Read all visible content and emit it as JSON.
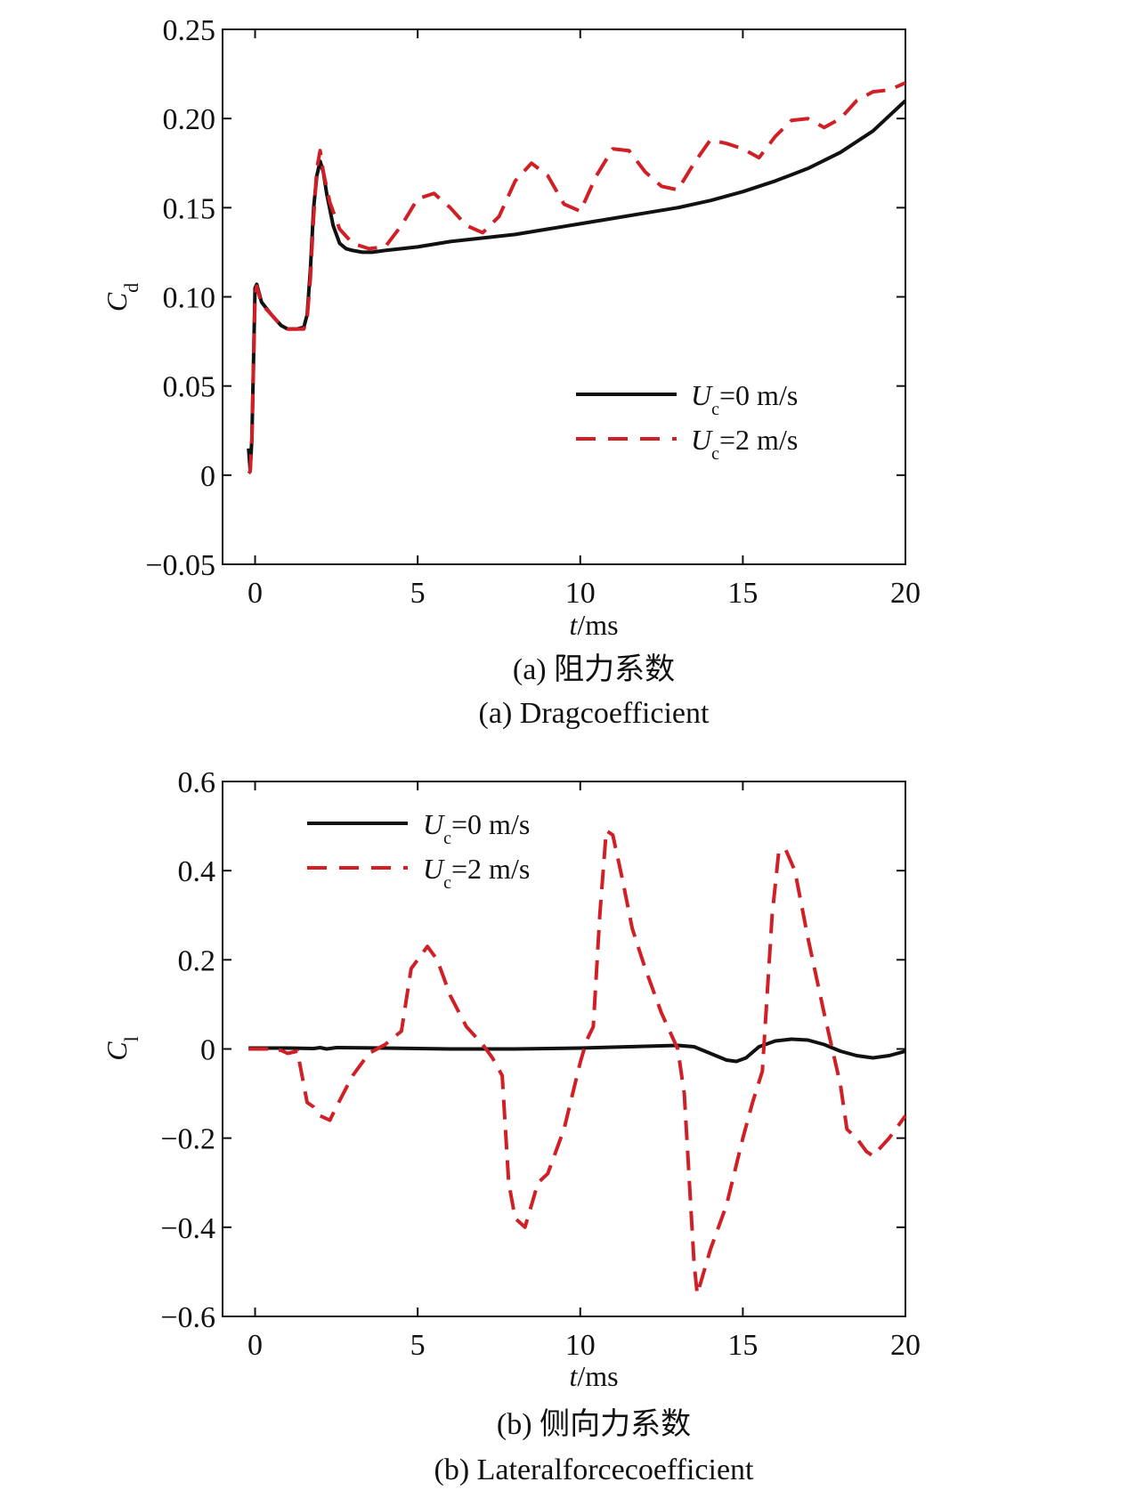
{
  "colors": {
    "black_line": "#111111",
    "red_line": "#d11f26"
  },
  "chart_data": [
    {
      "type": "line",
      "ylabel": "C",
      "ylabel_sub": "d",
      "xlabel_italic": "t",
      "xlabel_unit": "/ms",
      "xlim": [
        -1,
        20
      ],
      "ylim": [
        -0.05,
        0.25
      ],
      "x_ticks": [
        0,
        5,
        10,
        15,
        20
      ],
      "x_tick_labels": [
        "0",
        "5",
        "10",
        "15",
        "20"
      ],
      "y_ticks": [
        -0.05,
        0,
        0.05,
        0.1,
        0.15,
        0.2,
        0.25
      ],
      "y_tick_labels": [
        "−0.05",
        "0",
        "0.05",
        "0.10",
        "0.15",
        "0.20",
        "0.25"
      ],
      "legend_position": "center-right",
      "caption_cn": "(a) 阻力系数",
      "caption_en": "(a) Dragcoefficient",
      "series": [
        {
          "legend_main": "U",
          "legend_sub": "c",
          "legend_tail": "=0 m/s",
          "style": "solid",
          "color": "#111111",
          "x": [
            -0.2,
            -0.15,
            -0.1,
            0.0,
            0.05,
            0.2,
            0.5,
            0.8,
            1.0,
            1.3,
            1.5,
            1.6,
            1.7,
            1.8,
            1.9,
            2.0,
            2.1,
            2.2,
            2.4,
            2.6,
            2.8,
            3.0,
            3.3,
            3.6,
            4.0,
            5.0,
            6.0,
            7.0,
            8.0,
            9.0,
            10.0,
            11.0,
            12.0,
            13.0,
            14.0,
            15.0,
            16.0,
            17.0,
            18.0,
            19.0,
            20.0
          ],
          "y": [
            0.015,
            0.003,
            0.02,
            0.105,
            0.107,
            0.097,
            0.09,
            0.084,
            0.082,
            0.082,
            0.083,
            0.09,
            0.115,
            0.15,
            0.168,
            0.176,
            0.17,
            0.158,
            0.14,
            0.13,
            0.127,
            0.126,
            0.125,
            0.125,
            0.126,
            0.128,
            0.131,
            0.133,
            0.135,
            0.138,
            0.141,
            0.144,
            0.147,
            0.15,
            0.154,
            0.159,
            0.165,
            0.172,
            0.181,
            0.193,
            0.21
          ]
        },
        {
          "legend_main": "U",
          "legend_sub": "c",
          "legend_tail": "=2 m/s",
          "style": "dashed",
          "color": "#d11f26",
          "x": [
            -0.2,
            -0.15,
            -0.1,
            0.0,
            0.05,
            0.2,
            0.5,
            0.8,
            1.0,
            1.3,
            1.5,
            1.6,
            1.7,
            1.8,
            1.9,
            2.0,
            2.1,
            2.3,
            2.6,
            3.0,
            3.5,
            4.0,
            4.5,
            5.0,
            5.5,
            6.0,
            6.5,
            7.0,
            7.5,
            8.0,
            8.5,
            9.0,
            9.5,
            10.0,
            10.5,
            11.0,
            11.5,
            12.0,
            12.5,
            13.0,
            13.5,
            14.0,
            14.5,
            15.0,
            15.5,
            16.0,
            16.5,
            17.0,
            17.5,
            18.0,
            18.5,
            19.0,
            19.5,
            20.0
          ],
          "y": [
            0.001,
            0.002,
            0.02,
            0.1,
            0.106,
            0.096,
            0.09,
            0.084,
            0.082,
            0.082,
            0.082,
            0.088,
            0.11,
            0.145,
            0.172,
            0.182,
            0.17,
            0.153,
            0.138,
            0.13,
            0.127,
            0.128,
            0.14,
            0.155,
            0.158,
            0.15,
            0.14,
            0.136,
            0.145,
            0.165,
            0.175,
            0.168,
            0.152,
            0.148,
            0.168,
            0.183,
            0.182,
            0.17,
            0.162,
            0.16,
            0.175,
            0.188,
            0.186,
            0.183,
            0.178,
            0.19,
            0.199,
            0.2,
            0.195,
            0.2,
            0.21,
            0.215,
            0.216,
            0.22
          ]
        }
      ]
    },
    {
      "type": "line",
      "ylabel": "C",
      "ylabel_sub": "l",
      "xlabel_italic": "t",
      "xlabel_unit": "/ms",
      "xlim": [
        -1,
        20
      ],
      "ylim": [
        -0.6,
        0.6
      ],
      "x_ticks": [
        0,
        5,
        10,
        15,
        20
      ],
      "x_tick_labels": [
        "0",
        "5",
        "10",
        "15",
        "20"
      ],
      "y_ticks": [
        -0.6,
        -0.4,
        -0.2,
        0,
        0.2,
        0.4,
        0.6
      ],
      "y_tick_labels": [
        "−0.6",
        "−0.4",
        "−0.2",
        "0",
        "0.2",
        "0.4",
        "0.6"
      ],
      "legend_position": "top-left",
      "caption_cn": "(b) 侧向力系数",
      "caption_en": "(b) Lateralforcecoefficient",
      "series": [
        {
          "legend_main": "U",
          "legend_sub": "c",
          "legend_tail": "=0 m/s",
          "style": "solid",
          "color": "#111111",
          "x": [
            -0.2,
            1.0,
            1.8,
            2.0,
            2.2,
            2.5,
            4.0,
            6.0,
            8.0,
            10.0,
            12.0,
            13.0,
            13.5,
            14.0,
            14.5,
            14.8,
            15.1,
            15.5,
            16.0,
            16.5,
            17.0,
            17.5,
            18.0,
            18.5,
            19.0,
            19.5,
            20.0
          ],
          "y": [
            0.002,
            0.002,
            0.001,
            0.003,
            0.0,
            0.003,
            0.002,
            0.0,
            0.0,
            0.002,
            0.006,
            0.008,
            0.005,
            -0.01,
            -0.025,
            -0.028,
            -0.02,
            0.005,
            0.018,
            0.022,
            0.02,
            0.01,
            -0.005,
            -0.015,
            -0.02,
            -0.015,
            -0.005
          ]
        },
        {
          "legend_main": "U",
          "legend_sub": "c",
          "legend_tail": "=2 m/s",
          "style": "dashed",
          "color": "#d11f26",
          "x": [
            -0.2,
            0.5,
            0.8,
            1.0,
            1.3,
            1.6,
            1.8,
            2.0,
            2.3,
            2.5,
            3.0,
            3.5,
            4.0,
            4.5,
            4.8,
            5.0,
            5.3,
            5.6,
            6.0,
            6.5,
            7.0,
            7.3,
            7.6,
            7.8,
            8.0,
            8.3,
            8.7,
            9.0,
            9.5,
            10.0,
            10.2,
            10.4,
            10.6,
            10.8,
            11.0,
            11.3,
            11.6,
            12.0,
            12.5,
            13.0,
            13.2,
            13.5,
            13.6,
            13.8,
            14.0,
            14.5,
            15.0,
            15.3,
            15.6,
            15.9,
            16.1,
            16.3,
            16.6,
            17.0,
            17.5,
            18.0,
            18.2,
            18.5,
            18.8,
            19.0,
            19.5,
            20.0
          ],
          "y": [
            0.0,
            0.0,
            -0.003,
            -0.01,
            -0.005,
            -0.12,
            -0.13,
            -0.15,
            -0.16,
            -0.13,
            -0.06,
            -0.01,
            0.01,
            0.04,
            0.18,
            0.2,
            0.23,
            0.2,
            0.12,
            0.05,
            0.01,
            -0.02,
            -0.06,
            -0.3,
            -0.38,
            -0.4,
            -0.3,
            -0.28,
            -0.18,
            -0.03,
            0.02,
            0.05,
            0.3,
            0.49,
            0.48,
            0.38,
            0.27,
            0.18,
            0.08,
            0.0,
            -0.1,
            -0.48,
            -0.55,
            -0.5,
            -0.45,
            -0.35,
            -0.2,
            -0.12,
            -0.05,
            0.3,
            0.44,
            0.45,
            0.4,
            0.25,
            0.08,
            -0.08,
            -0.18,
            -0.2,
            -0.23,
            -0.24,
            -0.2,
            -0.15
          ]
        }
      ]
    }
  ]
}
